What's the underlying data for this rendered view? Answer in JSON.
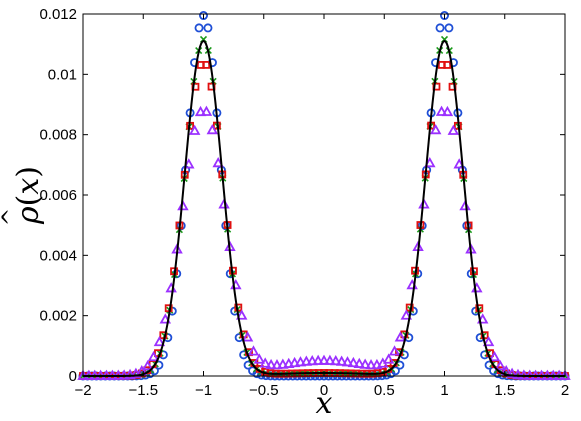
{
  "chart_data": {
    "type": "scatter",
    "title": "",
    "xlabel": "x",
    "ylabel_parts": {
      "hat": "^",
      "base": "ρ",
      "open": "(",
      "arg": "x",
      "close": ")"
    },
    "xlim": [
      -2,
      2
    ],
    "ylim": [
      0,
      0.012
    ],
    "xticks": [
      -2,
      -1.5,
      -1,
      -0.5,
      0,
      0.5,
      1,
      1.5,
      2
    ],
    "xtick_labels": [
      "−2",
      "−1.5",
      "−1",
      "−0.5",
      "0",
      "0.5",
      "1",
      "1.5",
      "2"
    ],
    "yticks": [
      0,
      0.002,
      0.004,
      0.006,
      0.008,
      0.01,
      0.012
    ],
    "ytick_labels": [
      "0",
      "0.002",
      "0.004",
      "0.006",
      "0.008",
      "0.01",
      "0.012"
    ],
    "grid": false,
    "legend": "none",
    "series": [
      {
        "marker": "circle",
        "color": "#1f4fd6",
        "peak_x": 1.0,
        "peak_y": 0.01195,
        "width": 0.14,
        "floor": 0.0,
        "n": 109
      },
      {
        "marker": "x",
        "color": "#1a9a1a",
        "peak_x": 1.0,
        "peak_y": 0.01125,
        "width": 0.155,
        "floor": 0.0001,
        "n": 101
      },
      {
        "marker": "square",
        "color": "#e01010",
        "peak_x": 1.0,
        "peak_y": 0.0105,
        "width": 0.165,
        "floor": 0.0001,
        "n": 91
      },
      {
        "marker": "triangle",
        "color": "#9b30ff",
        "peak_x": 1.0,
        "peak_y": 0.0093,
        "width": 0.18,
        "floor": 0.0005,
        "n": 83
      }
    ],
    "line": {
      "color": "#000000",
      "peak_x": 1.0,
      "peak_y": 0.0112,
      "width": 0.155,
      "floor": 0.0001
    }
  }
}
